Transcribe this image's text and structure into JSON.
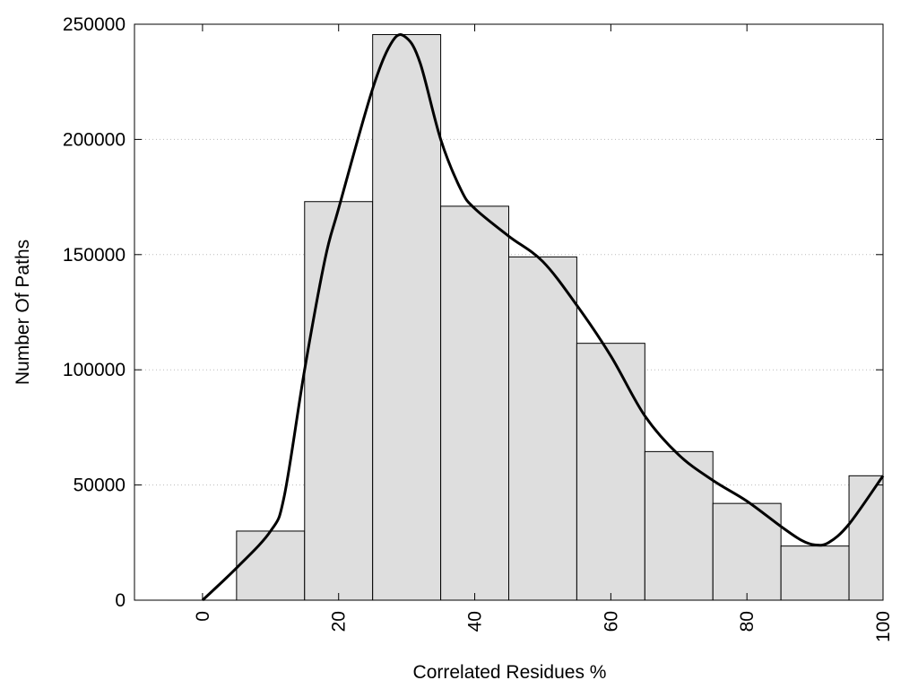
{
  "chart_data": {
    "type": "bar",
    "title": "",
    "xlabel": "Correlated Residues %",
    "ylabel": "Number Of Paths",
    "xlim": [
      -10,
      100
    ],
    "ylim": [
      0,
      250000
    ],
    "grid": "horizontal-dotted",
    "x_ticks": [
      "0",
      "20",
      "40",
      "60",
      "80",
      "100"
    ],
    "y_ticks": [
      "0",
      "50000",
      "100000",
      "150000",
      "200000",
      "250000"
    ],
    "bin_width": 10,
    "categories": [
      "0",
      "10",
      "20",
      "30",
      "40",
      "50",
      "60",
      "70",
      "80",
      "90",
      "100"
    ],
    "values": [
      0,
      30000,
      173000,
      245500,
      171000,
      149000,
      111500,
      64500,
      42000,
      23500,
      54000
    ],
    "bar_color": "#dedede",
    "density_curve": {
      "x": [
        0,
        5,
        10,
        12,
        15,
        18,
        20,
        25,
        28,
        30,
        32,
        35,
        38,
        40,
        45,
        50,
        55,
        60,
        65,
        70,
        75,
        80,
        85,
        88,
        90,
        92,
        95,
        100
      ],
      "y": [
        0,
        14000,
        30000,
        45000,
        100000,
        148000,
        170000,
        222000,
        243000,
        244000,
        233000,
        200000,
        178000,
        170000,
        158000,
        147000,
        128000,
        106000,
        80000,
        63000,
        52000,
        43000,
        32000,
        26000,
        24000,
        25000,
        33000,
        54000
      ]
    }
  }
}
